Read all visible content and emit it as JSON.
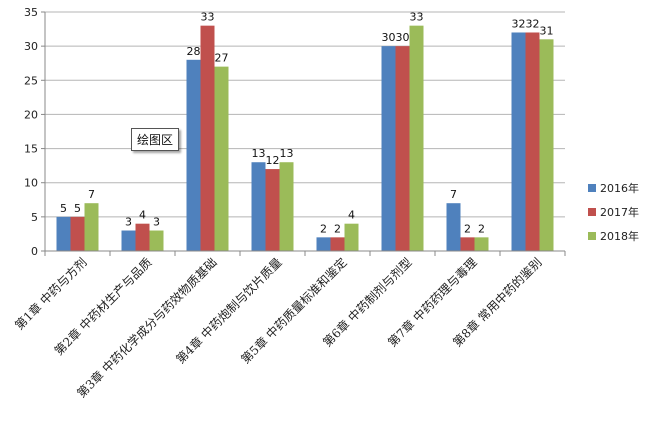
{
  "chart_data": {
    "type": "bar",
    "title": "",
    "xlabel": "",
    "ylabel": "",
    "ylim": [
      0,
      35
    ],
    "yticks": [
      0,
      5,
      10,
      15,
      20,
      25,
      30,
      35
    ],
    "grid": true,
    "legend_position": "right",
    "categories": [
      "第1章 中药与方剂",
      "第2章 中药材生产与品质",
      "第3章 中药化学成分与药效物质基础",
      "第4章 中药炮制与饮片质量",
      "第5章 中药质量标准和鉴定",
      "第6章 中药制剂与剂型",
      "第7章 中药药理与毒理",
      "第8章 常用中药的鉴别"
    ],
    "series": [
      {
        "name": "2016年",
        "color": "#4f81bd",
        "values": [
          5,
          3,
          28,
          13,
          2,
          30,
          7,
          32
        ]
      },
      {
        "name": "2017年",
        "color": "#c0504d",
        "values": [
          5,
          4,
          33,
          12,
          2,
          30,
          2,
          32
        ]
      },
      {
        "name": "2018年",
        "color": "#9bbb59",
        "values": [
          7,
          3,
          27,
          13,
          4,
          33,
          2,
          31
        ]
      }
    ]
  },
  "tooltip": {
    "text": "绘图区"
  }
}
